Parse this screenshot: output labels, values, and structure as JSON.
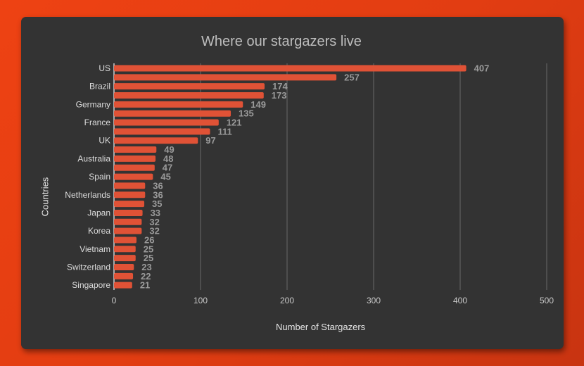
{
  "chart_data": {
    "type": "bar",
    "orientation": "horizontal",
    "title": "Where our stargazers live",
    "xlabel": "Number of Stargazers",
    "ylabel": "Countries",
    "xlim": [
      0,
      500
    ],
    "xticks": [
      0,
      100,
      200,
      300,
      400,
      500
    ],
    "grid": true,
    "bar_color": "#e05236",
    "categories": [
      "US",
      "",
      "Brazil",
      "",
      "Germany",
      "",
      "France",
      "",
      "UK",
      "",
      "Australia",
      "",
      "Spain",
      "",
      "Netherlands",
      "",
      "Japan",
      "",
      "Korea",
      "",
      "Vietnam",
      "",
      "Switzerland",
      "",
      "Singapore"
    ],
    "values": [
      407,
      257,
      174,
      173,
      149,
      135,
      121,
      111,
      97,
      49,
      48,
      47,
      45,
      36,
      36,
      35,
      33,
      32,
      32,
      26,
      25,
      25,
      23,
      22,
      21
    ]
  }
}
